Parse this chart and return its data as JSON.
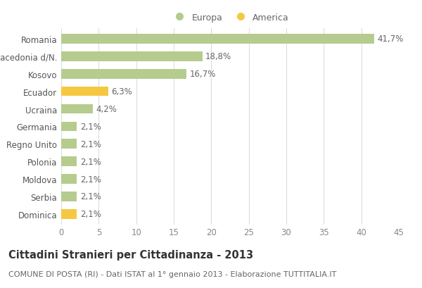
{
  "categories": [
    "Romania",
    "Macedonia d/N.",
    "Kosovo",
    "Ecuador",
    "Ucraina",
    "Germania",
    "Regno Unito",
    "Polonia",
    "Moldova",
    "Serbia",
    "Dominica"
  ],
  "values": [
    41.7,
    18.8,
    16.7,
    6.3,
    4.2,
    2.1,
    2.1,
    2.1,
    2.1,
    2.1,
    2.1
  ],
  "labels": [
    "41,7%",
    "18,8%",
    "16,7%",
    "6,3%",
    "4,2%",
    "2,1%",
    "2,1%",
    "2,1%",
    "2,1%",
    "2,1%",
    "2,1%"
  ],
  "colors": [
    "#b5cc8e",
    "#b5cc8e",
    "#b5cc8e",
    "#f5c842",
    "#b5cc8e",
    "#b5cc8e",
    "#b5cc8e",
    "#b5cc8e",
    "#b5cc8e",
    "#b5cc8e",
    "#f5c842"
  ],
  "europa_color": "#b5cc8e",
  "america_color": "#f5c842",
  "xlim": [
    0,
    45
  ],
  "xticks": [
    0,
    5,
    10,
    15,
    20,
    25,
    30,
    35,
    40,
    45
  ],
  "title": "Cittadini Stranieri per Cittadinanza - 2013",
  "subtitle": "COMUNE DI POSTA (RI) - Dati ISTAT al 1° gennaio 2013 - Elaborazione TUTTITALIA.IT",
  "legend_europa": "Europa",
  "legend_america": "America",
  "background_color": "#ffffff",
  "grid_color": "#dddddd",
  "bar_height": 0.55,
  "label_fontsize": 8.5,
  "tick_fontsize": 8.5,
  "title_fontsize": 10.5,
  "subtitle_fontsize": 8
}
